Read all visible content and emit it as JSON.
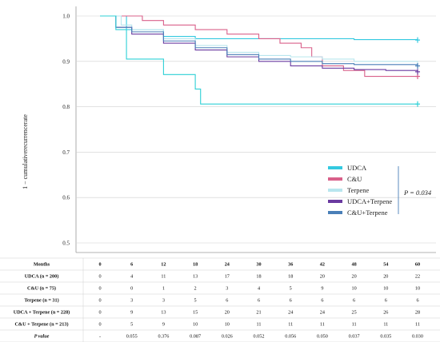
{
  "chart_data": {
    "type": "line",
    "ylabel": "1 − cumulativerecurrencerate",
    "ylim": [
      0.45,
      1.0
    ],
    "xlim": [
      0,
      60
    ],
    "y_ticks": [
      "0.5",
      "0.6",
      "0.7",
      "0.8",
      "0.9",
      "1.0"
    ],
    "grid": "horizontal",
    "legend_position": "lower-right",
    "p_value_label": "P = 0.034",
    "series": [
      {
        "name": "UDCA",
        "color": "#33c9e0",
        "x": [
          0,
          5,
          12,
          18,
          30,
          42,
          48,
          60
        ],
        "y": [
          1.0,
          0.97,
          0.955,
          0.95,
          0.95,
          0.95,
          0.948,
          0.947
        ]
      },
      {
        "name": "C&U",
        "color": "#d9608a",
        "x": [
          0,
          4,
          8,
          12,
          18,
          24,
          30,
          34,
          38,
          40,
          42,
          46,
          50,
          60
        ],
        "y": [
          1.0,
          1.0,
          0.99,
          0.98,
          0.97,
          0.96,
          0.95,
          0.94,
          0.93,
          0.91,
          0.89,
          0.88,
          0.867,
          0.867
        ]
      },
      {
        "name": "Terpene",
        "color": "#b8e6ee",
        "x": [
          0,
          4,
          6,
          12,
          18,
          24,
          30,
          36,
          42,
          48,
          60
        ],
        "y": [
          1.0,
          0.98,
          0.97,
          0.95,
          0.935,
          0.92,
          0.913,
          0.91,
          0.905,
          0.9,
          0.89
        ]
      },
      {
        "name": "UDCA+Terpene",
        "color": "#6a3aa0",
        "x": [
          0,
          3,
          6,
          12,
          18,
          24,
          30,
          36,
          42,
          48,
          54,
          60
        ],
        "y": [
          1.0,
          0.975,
          0.96,
          0.94,
          0.925,
          0.91,
          0.9,
          0.89,
          0.885,
          0.882,
          0.88,
          0.877
        ]
      },
      {
        "name": "C&U+Terpene",
        "color": "#4a7fb8",
        "x": [
          0,
          3,
          6,
          12,
          18,
          24,
          30,
          36,
          42,
          48,
          60
        ],
        "y": [
          1.0,
          0.975,
          0.965,
          0.945,
          0.93,
          0.915,
          0.905,
          0.9,
          0.895,
          0.893,
          0.89
        ]
      },
      {
        "name": "",
        "color": "#2ed0d6",
        "x": [
          0,
          3,
          5,
          8,
          12,
          16,
          18,
          19,
          24,
          36,
          48,
          60
        ],
        "y": [
          1.0,
          0.97,
          0.905,
          0.905,
          0.871,
          0.871,
          0.839,
          0.806,
          0.806,
          0.806,
          0.806,
          0.806
        ]
      }
    ]
  },
  "table": {
    "header_label": "Months",
    "months": [
      "0",
      "6",
      "12",
      "18",
      "24",
      "30",
      "36",
      "42",
      "48",
      "54",
      "60"
    ],
    "rows": [
      {
        "label": "UDCA (n = 200)",
        "values": [
          "0",
          "4",
          "11",
          "13",
          "17",
          "18",
          "18",
          "20",
          "20",
          "20",
          "22"
        ]
      },
      {
        "label": "C&U (n = 75)",
        "values": [
          "0",
          "0",
          "1",
          "2",
          "3",
          "4",
          "5",
          "9",
          "10",
          "10",
          "10"
        ]
      },
      {
        "label": "Terpene (n = 31)",
        "values": [
          "0",
          "3",
          "3",
          "5",
          "6",
          "6",
          "6",
          "6",
          "6",
          "6",
          "6"
        ]
      },
      {
        "label": "UDCA + Terpene (n = 228)",
        "values": [
          "0",
          "9",
          "13",
          "15",
          "20",
          "21",
          "24",
          "24",
          "25",
          "26",
          "28"
        ]
      },
      {
        "label": "C&U + Terpene (n = 213)",
        "values": [
          "0",
          "5",
          "9",
          "10",
          "10",
          "11",
          "11",
          "11",
          "11",
          "11",
          "11"
        ]
      },
      {
        "label": "P value",
        "values": [
          "-",
          "0.055",
          "0.376",
          "0.087",
          "0.026",
          "0.052",
          "0.056",
          "0.050",
          "0.037",
          "0.035",
          "0.030"
        ]
      }
    ]
  }
}
